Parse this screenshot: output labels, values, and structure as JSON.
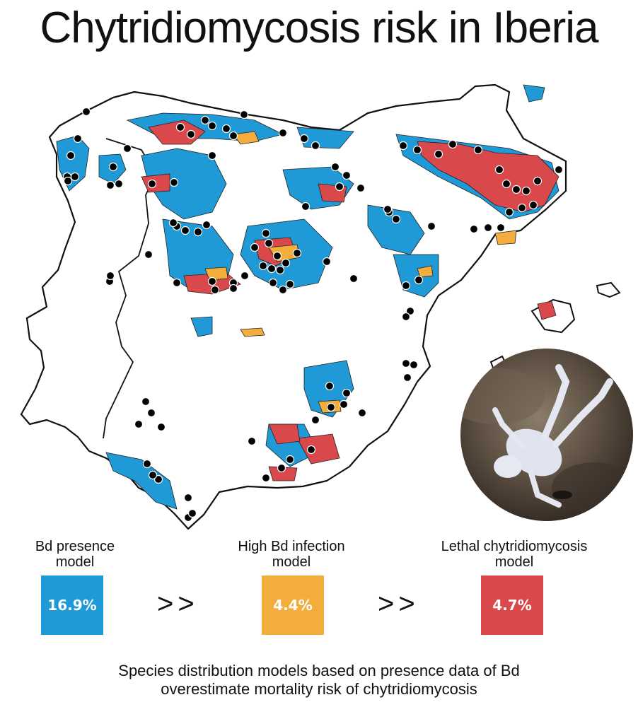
{
  "title": "Chytridiomycosis risk in Iberia",
  "colors": {
    "presence": "#1f9ad6",
    "infection": "#f2ad3c",
    "lethal": "#d9484b",
    "border": "#111111",
    "site": "#000000"
  },
  "legend": [
    {
      "label_line1": "Bd presence",
      "label_line2": "model",
      "value": "16.9%",
      "color": "#1f9ad6"
    },
    {
      "label_line1": "High Bd infection",
      "label_line2": "model",
      "value": "4.4%",
      "color": "#f2ad3c"
    },
    {
      "label_line1": "Lethal chytridiomycosis",
      "label_line2": "model",
      "value": "4.7%",
      "color": "#d9484b"
    }
  ],
  "separator": ">>",
  "caption": {
    "line1": "Species distribution models based on presence data of Bd",
    "line2": "overestimate mortality risk of chytridiomycosis"
  }
}
